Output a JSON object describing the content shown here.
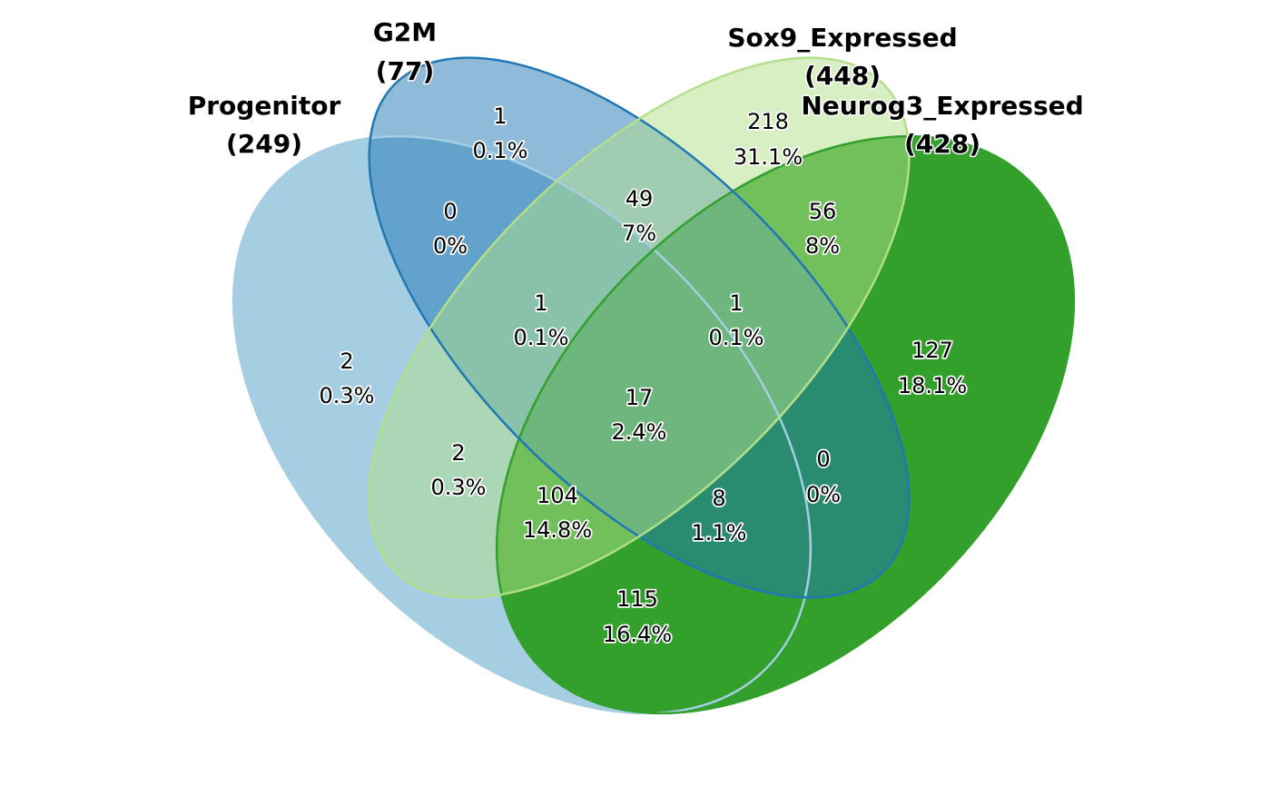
{
  "sets": [
    {
      "key": "progenitor",
      "name": "Progenitor",
      "total": "(249)",
      "color": "#A6CEE3"
    },
    {
      "key": "g2m",
      "name": "G2M",
      "total": "(77)",
      "color": "#1F78B4"
    },
    {
      "key": "sox9",
      "name": "Sox9_Expressed",
      "total": "(448)",
      "color": "#B2DF8A"
    },
    {
      "key": "neurog3",
      "name": "Neurog3_Expressed",
      "total": "(428)",
      "color": "#33A02C"
    }
  ],
  "regions": [
    {
      "key": "g2m_only",
      "count": "1",
      "percent": "0.1%"
    },
    {
      "key": "sox9_only",
      "count": "218",
      "percent": "31.1%"
    },
    {
      "key": "progenitor_g2m",
      "count": "0",
      "percent": "0%"
    },
    {
      "key": "g2m_sox9",
      "count": "49",
      "percent": "7%"
    },
    {
      "key": "sox9_neurog3",
      "count": "56",
      "percent": "8%"
    },
    {
      "key": "progenitor_g2m_sox9",
      "count": "1",
      "percent": "0.1%"
    },
    {
      "key": "g2m_sox9_neurog3",
      "count": "1",
      "percent": "0.1%"
    },
    {
      "key": "progenitor_only",
      "count": "2",
      "percent": "0.3%"
    },
    {
      "key": "neurog3_only",
      "count": "127",
      "percent": "18.1%"
    },
    {
      "key": "all_four",
      "count": "17",
      "percent": "2.4%"
    },
    {
      "key": "progenitor_sox9",
      "count": "2",
      "percent": "0.3%"
    },
    {
      "key": "g2m_neurog3",
      "count": "0",
      "percent": "0%"
    },
    {
      "key": "progenitor_sox9_neurog3",
      "count": "104",
      "percent": "14.8%"
    },
    {
      "key": "progenitor_g2m_neurog3",
      "count": "8",
      "percent": "1.1%"
    },
    {
      "key": "progenitor_neurog3",
      "count": "115",
      "percent": "16.4%"
    }
  ]
}
